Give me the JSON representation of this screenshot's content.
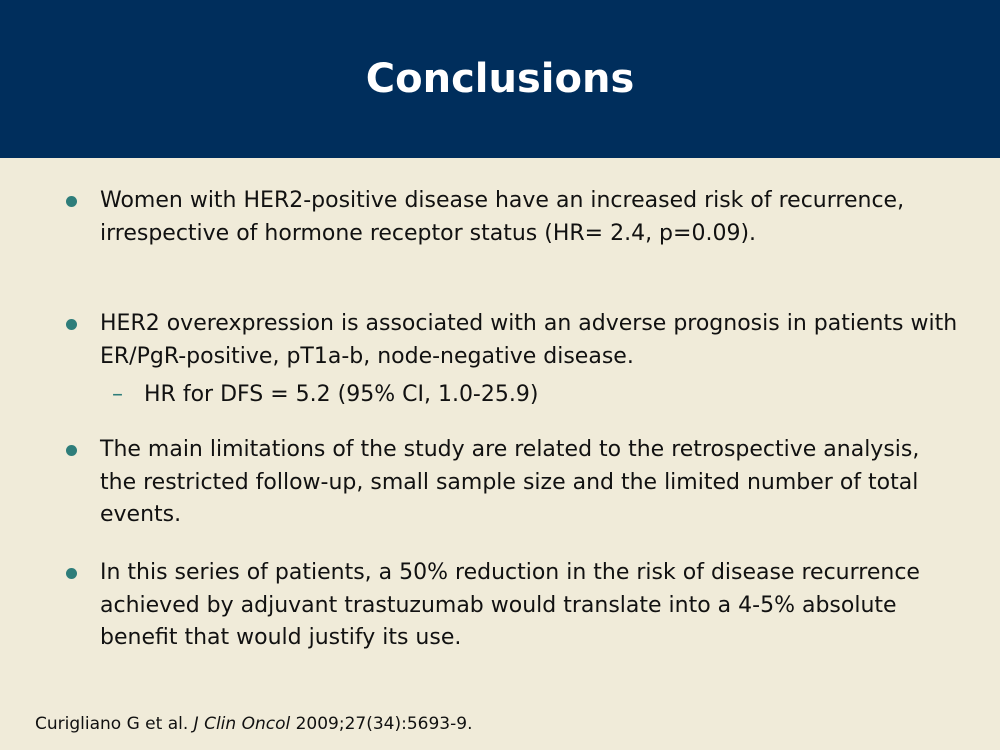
{
  "slide": {
    "title": "Conclusions",
    "bullets": [
      {
        "text": "Women with HER2-positive disease have an increased risk of recurrence, irrespective of hormone receptor status (HR= 2.4, p=0.09)."
      },
      {
        "text": "HER2 overexpression is associated with an adverse prognosis in patients with ER/PgR-positive, pT1a-b, node-negative disease."
      },
      {
        "text": "The main limitations of the study are related to the retrospective analysis, the restricted follow-up, small sample size and the limited number of total events."
      },
      {
        "text": "In this series of patients, a 50% reduction in the risk of disease recurrence achieved by adjuvant trastuzumab would translate into a 4-5% absolute benefit that would justify its use."
      }
    ],
    "sub_bullet": {
      "marker": "–",
      "text": "HR for DFS = 5.2 (95% CI, 1.0-25.9)"
    },
    "citation": {
      "authors": "Curigliano G et al.",
      "journal": "J Clin Oncol",
      "details": "2009;27(34):5693-9."
    }
  },
  "colors": {
    "header_bg": "#002e5c",
    "slide_bg": "#f0ebd9",
    "bullet_accent": "#2e7d7a"
  }
}
